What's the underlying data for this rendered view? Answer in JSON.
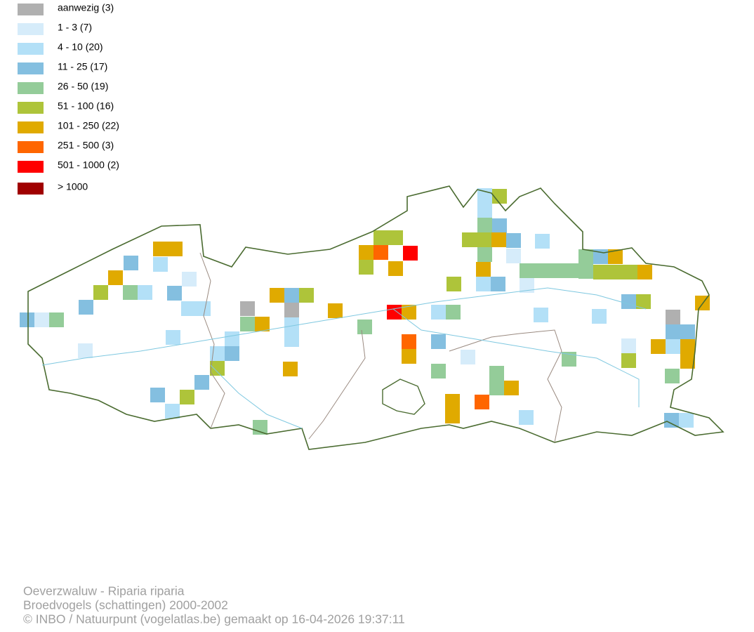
{
  "legend": {
    "items": [
      {
        "label": "aanwezig (3)",
        "color": "#b0b0b0"
      },
      {
        "label": "1 - 3 (7)",
        "color": "#d6ecfa"
      },
      {
        "label": "4 - 10 (20)",
        "color": "#b3e0f7"
      },
      {
        "label": "11 - 25 (17)",
        "color": "#84bfe0"
      },
      {
        "label": "26 - 50 (19)",
        "color": "#94cc99"
      },
      {
        "label": "51 - 100 (16)",
        "color": "#aec43a"
      },
      {
        "label": "101 - 250 (22)",
        "color": "#e0aa00"
      },
      {
        "label": "251 - 500 (3)",
        "color": "#ff6600"
      },
      {
        "label": "501 - 1000 (2)",
        "color": "#ff0000"
      },
      {
        "label": "> 1000",
        "color": "#a00000"
      }
    ]
  },
  "footer": {
    "lines": [
      "Oeverzwaluw - Riparia riparia",
      "Broedvogels (schattingen) 2000-2002",
      "© INBO / Natuurpunt (vogelatlas.be) gemaakt op 16-04-2026 19:37:11"
    ]
  }
}
